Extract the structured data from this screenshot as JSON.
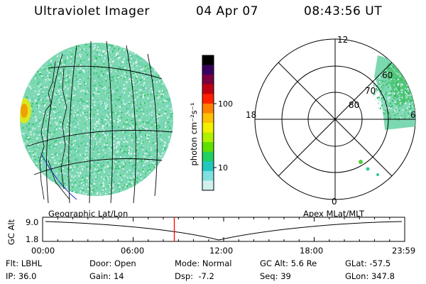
{
  "header": {
    "instrument": "Ultraviolet Imager",
    "date": "04 Apr 07",
    "time": "08:43:56 UT"
  },
  "colorbar": {
    "label": "photon cm⁻²s⁻¹",
    "ticks": [
      "100",
      "10"
    ],
    "colors": [
      "#000000",
      "#3a0060",
      "#7a0040",
      "#c00010",
      "#ff2000",
      "#ff8000",
      "#ffc000",
      "#f0f000",
      "#b0f000",
      "#60e000",
      "#20d060",
      "#20c8c0",
      "#80e0e0",
      "#d0f0f0"
    ]
  },
  "polar": {
    "mlt_labels": {
      "top": "12",
      "left": "18",
      "right": "6",
      "bottom": "0"
    },
    "lat_labels": [
      "80",
      "70",
      "60"
    ]
  },
  "timeline": {
    "left_title": "Geographic Lat/Lon",
    "right_title": "Apex MLat/MLT",
    "axis_label": "GC Alt",
    "y_ticks": [
      "9.0",
      "1.8"
    ],
    "x_ticks": [
      "00:00",
      "06:00",
      "12:00",
      "18:00",
      "23:59"
    ],
    "marker_time_hours": 8.73,
    "marker_color": "#ff0000"
  },
  "info": {
    "row1": {
      "filter": "Flt: LBHL",
      "door": "Door: Open",
      "mode": "Mode: Normal",
      "gc_alt": "GC Alt: 5.6 Re",
      "glat": "GLat: -57.5"
    },
    "row2": {
      "ip": "IP: 36.0",
      "gain": "Gain: 14",
      "dsp": "Dsp:  -7.2",
      "seq": "Seq: 39",
      "glon": "GLon: 347.8"
    }
  }
}
